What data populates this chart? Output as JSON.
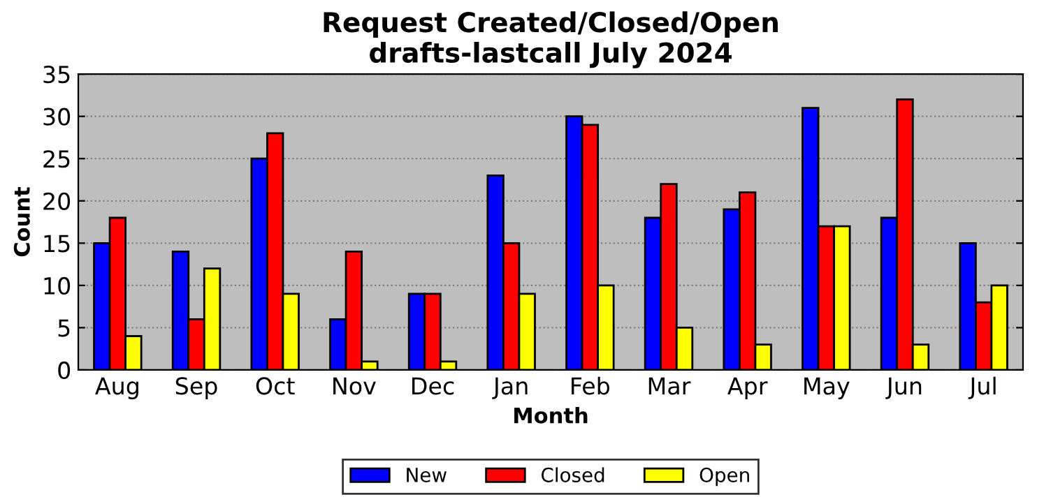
{
  "chart_data": {
    "type": "bar",
    "title": "Request Created/Closed/Open\ndrafts-lastcall July 2024",
    "xlabel": "Month",
    "ylabel": "Count",
    "categories": [
      "Aug",
      "Sep",
      "Oct",
      "Nov",
      "Dec",
      "Jan",
      "Feb",
      "Mar",
      "Apr",
      "May",
      "Jun",
      "Jul"
    ],
    "series": [
      {
        "name": "New",
        "color": "#0000ff",
        "values": [
          15,
          14,
          25,
          6,
          9,
          23,
          30,
          18,
          19,
          31,
          18,
          15
        ]
      },
      {
        "name": "Closed",
        "color": "#ff0000",
        "values": [
          18,
          6,
          28,
          14,
          9,
          15,
          29,
          22,
          21,
          17,
          32,
          8
        ]
      },
      {
        "name": "Open",
        "color": "#ffff00",
        "values": [
          4,
          12,
          9,
          1,
          1,
          9,
          10,
          5,
          3,
          17,
          3,
          10
        ]
      }
    ],
    "ylim": [
      0,
      35
    ],
    "yticks": [
      0,
      5,
      10,
      15,
      20,
      25,
      30,
      35
    ],
    "grid": "y",
    "legend": "bottom"
  }
}
